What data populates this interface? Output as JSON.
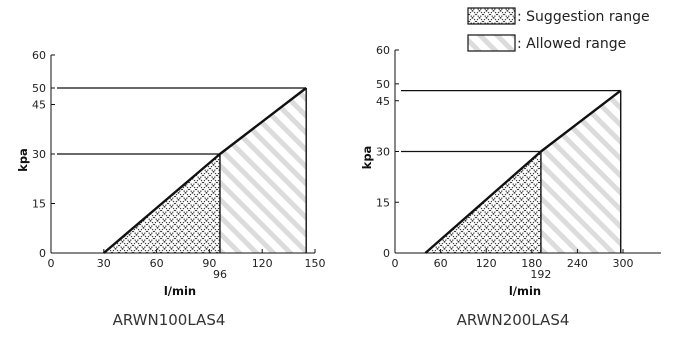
{
  "legend": {
    "suggestion": ": Suggestion range",
    "allowed": ": Allowed range"
  },
  "chart_data": [
    {
      "type": "area",
      "title": "ARWN100LAS4",
      "xlabel": "l/min",
      "ylabel": "kpa",
      "xlim": [
        0,
        150
      ],
      "ylim": [
        0,
        60
      ],
      "x_ticks": [
        0,
        30,
        60,
        90,
        120,
        150
      ],
      "y_ticks": [
        0,
        15,
        30,
        45,
        50,
        60
      ],
      "extra_x_tick": 96,
      "curve": [
        [
          30,
          0
        ],
        [
          96,
          30
        ],
        [
          145,
          50
        ]
      ],
      "suggestion_range": {
        "x_from": 30,
        "x_to": 96
      },
      "allowed_range": {
        "x_from": 96,
        "x_to": 145
      },
      "reference_lines": [
        {
          "y": 30,
          "x_to": 96
        },
        {
          "y": 50,
          "x_to": 145
        }
      ]
    },
    {
      "type": "area",
      "title": "ARWN200LAS4",
      "xlabel": "l/min",
      "ylabel": "kpa",
      "xlim": [
        0,
        350
      ],
      "ylim": [
        0,
        60
      ],
      "x_ticks": [
        0,
        60,
        120,
        180,
        240,
        300
      ],
      "y_ticks": [
        0,
        15,
        30,
        45,
        50,
        60
      ],
      "extra_x_tick": 192,
      "curve": [
        [
          40,
          0
        ],
        [
          192,
          30
        ],
        [
          297,
          48
        ]
      ],
      "suggestion_range": {
        "x_from": 40,
        "x_to": 192
      },
      "allowed_range": {
        "x_from": 192,
        "x_to": 297
      },
      "reference_lines": [
        {
          "y": 30,
          "x_to": 192
        },
        {
          "y": 48,
          "x_to": 297
        }
      ]
    }
  ]
}
